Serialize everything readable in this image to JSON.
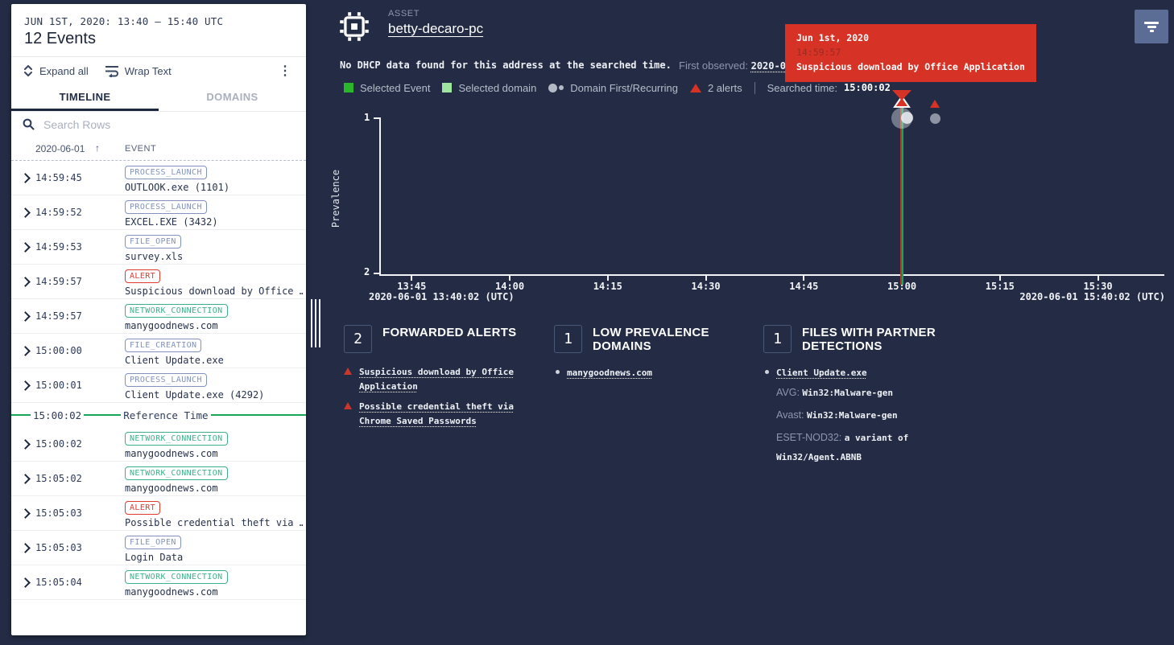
{
  "colors": {
    "app_bg": "#232c44",
    "panel_bg": "#ffffff",
    "accent_red": "#d63226",
    "accent_green": "#18a558",
    "selected_event_green": "#2ab62a",
    "selected_domain_green": "#9fe59f",
    "badge_slate": "#8292bc",
    "badge_teal": "#3db08a",
    "badge_red": "#e03b2f",
    "filter_button": "#5b6d94"
  },
  "icons": {
    "asset": "cpu-chip-icon",
    "filter": "filter-icon",
    "search": "search-icon",
    "expand_all": "expand-vertical-icon",
    "wrap_text": "wrap-text-icon",
    "overflow": "kebab-menu-icon",
    "sort": "arrow-up-icon",
    "row": "chevron-right-icon",
    "alert": "red-triangle-icon",
    "domain": "gray-dot-icon"
  },
  "left_panel": {
    "date_range": "JUN 1ST, 2020: 13:40 – 15:40 UTC",
    "event_count": "12 Events",
    "toolbar": {
      "expand_all": "Expand all",
      "wrap_text": "Wrap Text",
      "more": "⋮"
    },
    "tabs": [
      {
        "label": "TIMELINE",
        "active": true
      },
      {
        "label": "DOMAINS",
        "active": false
      }
    ],
    "search_placeholder": "Search Rows",
    "columns": {
      "date": "2020-06-01",
      "sort": "↑",
      "event": "EVENT"
    },
    "events": [
      {
        "time": "14:59:45",
        "badge": "PROCESS_LAUNCH",
        "badge_type": "slate",
        "text": "OUTLOOK.exe (1101)"
      },
      {
        "time": "14:59:52",
        "badge": "PROCESS_LAUNCH",
        "badge_type": "slate",
        "text": "EXCEL.EXE (3432)"
      },
      {
        "time": "14:59:53",
        "badge": "FILE_OPEN",
        "badge_type": "slate",
        "text": "survey.xls"
      },
      {
        "time": "14:59:57",
        "badge": "ALERT",
        "badge_type": "red",
        "text": "Suspicious download by Office …"
      },
      {
        "time": "14:59:57",
        "badge": "NETWORK_CONNECTION",
        "badge_type": "teal",
        "text": "manygoodnews.com"
      },
      {
        "time": "15:00:00",
        "badge": "FILE_CREATION",
        "badge_type": "slate",
        "text": "Client Update.exe"
      },
      {
        "time": "15:00:01",
        "badge": "PROCESS_LAUNCH",
        "badge_type": "slate",
        "text": "Client Update.exe (4292)"
      },
      {
        "divider": true,
        "time": "15:00:02",
        "label": "Reference Time"
      },
      {
        "time": "15:00:02",
        "badge": "NETWORK_CONNECTION",
        "badge_type": "teal",
        "text": "manygoodnews.com"
      },
      {
        "time": "15:05:02",
        "badge": "NETWORK_CONNECTION",
        "badge_type": "teal",
        "text": "manygoodnews.com"
      },
      {
        "time": "15:05:03",
        "badge": "ALERT",
        "badge_type": "red",
        "text": "Possible credential theft via …"
      },
      {
        "time": "15:05:03",
        "badge": "FILE_OPEN",
        "badge_type": "slate",
        "text": "Login Data"
      },
      {
        "time": "15:05:04",
        "badge": "NETWORK_CONNECTION",
        "badge_type": "teal",
        "text": "manygoodnews.com"
      }
    ]
  },
  "main": {
    "asset_label": "ASSET",
    "asset_name": "betty-decaro-pc",
    "dhcp_notice": "No DHCP data found for this address at the searched time.",
    "first_observed_label": "First observed:",
    "first_observed_value": "2020-02-21T18",
    "legend": [
      {
        "swatch": "green-square",
        "label": "Selected Event"
      },
      {
        "swatch": "lightgreen-square",
        "label": "Selected domain"
      },
      {
        "swatch": "dots",
        "label": "Domain First/Recurring"
      },
      {
        "swatch": "red-triangle",
        "label": "2 alerts"
      }
    ],
    "searched_time_label": "Searched time:",
    "searched_time_value": "15:00:02",
    "tooltip": {
      "date": "Jun 1st, 2020",
      "time": "14:59:57",
      "text": "Suspicious download by Office Application"
    }
  },
  "chart_data": {
    "type": "scatter",
    "ylabel": "Prevalence",
    "y_ticks": [
      "1",
      "2"
    ],
    "y_axis_inverted": true,
    "x_ticks": [
      "13:45",
      "14:00",
      "14:15",
      "14:30",
      "14:45",
      "15:00",
      "15:15",
      "15:30"
    ],
    "x_range": {
      "start": "13:40:02",
      "end": "15:40:02"
    },
    "x_range_labels": {
      "start": "2020-06-01 13:40:02 (UTC)",
      "end": "2020-06-01 15:40:02 (UTC)"
    },
    "series": [
      {
        "name": "alerts",
        "marker": "red-triangle",
        "points": [
          {
            "x": "14:59:57",
            "prevalence": 1,
            "selected": true,
            "label": "Suspicious download by Office Application"
          },
          {
            "x": "15:05:03",
            "prevalence": 1,
            "label": "Possible credential theft via Chrome Saved Passwords"
          }
        ]
      },
      {
        "name": "domains",
        "marker": "gray-dot",
        "points": [
          {
            "x": "15:00:02",
            "prevalence": 1,
            "variant": "first-and-recurring",
            "domain": "manygoodnews.com"
          },
          {
            "x": "15:05:02",
            "prevalence": 1,
            "variant": "recurring",
            "domain": "manygoodnews.com"
          }
        ]
      }
    ],
    "searched_time_line": {
      "x": "15:00:02",
      "red": "#b23b2d",
      "green": "#18a558"
    }
  },
  "sections": [
    {
      "count": "2",
      "title": "FORWARDED ALERTS",
      "bullet": "red-triangle",
      "items": [
        {
          "text": "Suspicious download by Office Application"
        },
        {
          "text": "Possible credential theft via Chrome Saved Passwords"
        }
      ]
    },
    {
      "count": "1",
      "title": "LOW PREVALENCE DOMAINS",
      "bullet": "dot",
      "items": [
        {
          "text": "manygoodnews.com"
        }
      ]
    },
    {
      "count": "1",
      "title": "FILES WITH PARTNER DETECTIONS",
      "bullet": "dot",
      "items": [
        {
          "text": "Client Update.exe",
          "details": [
            {
              "label": "AVG:",
              "value": "Win32:Malware-gen"
            },
            {
              "label": "Avast:",
              "value": "Win32:Malware-gen"
            },
            {
              "label": "ESET-NOD32:",
              "value": "a variant of Win32/Agent.ABNB"
            }
          ]
        }
      ]
    }
  ]
}
